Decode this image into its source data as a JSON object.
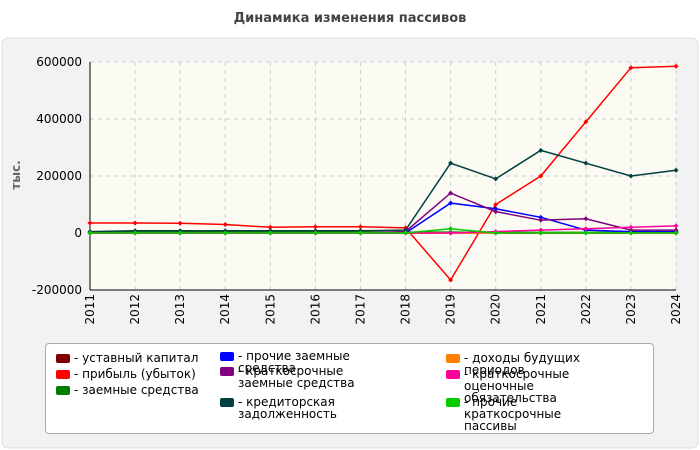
{
  "chart_data": {
    "type": "line",
    "title": "Динамика изменения пассивов",
    "y_label": "тыс.",
    "categories": [
      "2011",
      "2012",
      "2013",
      "2014",
      "2015",
      "2016",
      "2017",
      "2018",
      "2019",
      "2020",
      "2021",
      "2022",
      "2023",
      "2024"
    ],
    "ylim": [
      -200000,
      600000
    ],
    "yticks": [
      -200000,
      0,
      200000,
      400000,
      600000
    ],
    "grid": true,
    "series": [
      {
        "name": "- уставный капитал",
        "color": "#800000",
        "values": [
          100,
          100,
          100,
          100,
          100,
          100,
          100,
          100,
          100,
          100,
          100,
          100,
          100,
          100
        ]
      },
      {
        "name": "- прибыль (убыток)",
        "color": "#ff0000",
        "values": [
          35000,
          35000,
          34000,
          30000,
          20000,
          22000,
          22000,
          18000,
          -165000,
          100000,
          200000,
          390000,
          580000,
          585000
        ]
      },
      {
        "name": "- заемные средства",
        "color": "#008000",
        "values": [
          2000,
          3000,
          3000,
          3000,
          3000,
          3000,
          3000,
          3000,
          3000,
          2000,
          2000,
          2000,
          2000,
          2000
        ]
      },
      {
        "name": "- прочие заемные средства",
        "color": "#0000ff",
        "values": [
          0,
          0,
          0,
          0,
          0,
          0,
          0,
          0,
          105000,
          85000,
          55000,
          10000,
          5000,
          5000
        ]
      },
      {
        "name": "- краткосрочные заемные средства",
        "color": "#800080",
        "values": [
          0,
          0,
          0,
          0,
          0,
          0,
          0,
          5000,
          140000,
          75000,
          45000,
          50000,
          10000,
          10000
        ]
      },
      {
        "name": "- кредиторская задолженность",
        "color": "#004040",
        "values": [
          5000,
          8000,
          8000,
          8000,
          8000,
          8000,
          8000,
          10000,
          245000,
          190000,
          290000,
          245000,
          200000,
          220000
        ]
      },
      {
        "name": "- доходы будущих периодов",
        "color": "#ff8000",
        "values": [
          0,
          0,
          0,
          0,
          0,
          0,
          0,
          0,
          0,
          0,
          0,
          0,
          0,
          0
        ]
      },
      {
        "name": "- краткосрочные оценочные обязательства",
        "color": "#ff0099",
        "values": [
          0,
          0,
          0,
          0,
          0,
          0,
          0,
          0,
          0,
          5000,
          10000,
          15000,
          20000,
          25000
        ]
      },
      {
        "name": "- прочие краткосрочные пассивы",
        "color": "#00cc00",
        "values": [
          0,
          0,
          0,
          0,
          0,
          0,
          0,
          0,
          15000,
          0,
          0,
          0,
          0,
          0
        ]
      }
    ]
  }
}
